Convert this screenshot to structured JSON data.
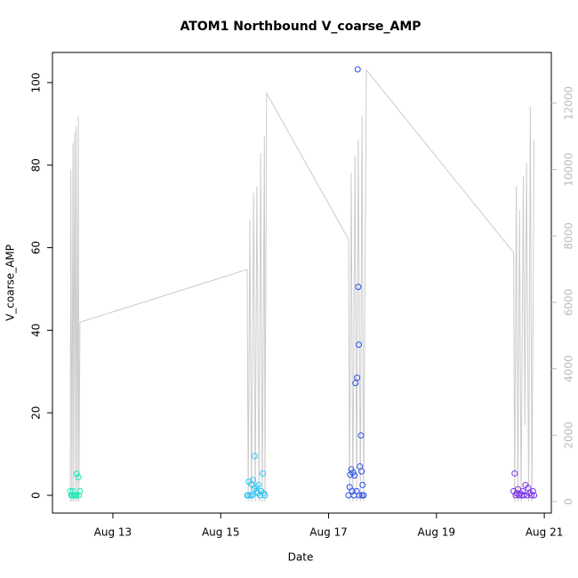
{
  "chart_data": {
    "type": "scatter",
    "title": "ATOM1 Northbound V_coarse_AMP",
    "xlabel": "Date",
    "ylabel": "V_coarse_AMP",
    "xlim": [
      11.88,
      21.13
    ],
    "xticks": [
      {
        "value": 13,
        "label": "Aug 13"
      },
      {
        "value": 15,
        "label": "Aug 15"
      },
      {
        "value": 17,
        "label": "Aug 17"
      },
      {
        "value": 19,
        "label": "Aug 19"
      },
      {
        "value": 21,
        "label": "Aug 21"
      }
    ],
    "ylim": [
      -4.3,
      107.3
    ],
    "yticks": [
      0,
      20,
      40,
      60,
      80,
      100
    ],
    "y2lim": [
      -348,
      13527
    ],
    "y2ticks": [
      0,
      2000,
      4000,
      6000,
      8000,
      10000,
      12000
    ],
    "series": [
      {
        "color": "#1de9b6",
        "x": [
          12.21,
          12.23,
          12.25,
          12.26,
          12.28,
          12.3,
          12.32,
          12.33,
          12.36,
          12.37,
          12.39
        ],
        "values": [
          1,
          0,
          0,
          1,
          0,
          0,
          0,
          5.2,
          4.4,
          0,
          1
        ]
      },
      {
        "color": "#29c4f6",
        "x": [
          15.49,
          15.51,
          15.52,
          15.55,
          15.57,
          15.58,
          15.6,
          15.62,
          15.63,
          15.65,
          15.67,
          15.69,
          15.7,
          15.73,
          15.75,
          15.78,
          15.8,
          15.82
        ],
        "values": [
          0,
          0,
          3.3,
          0,
          2.7,
          0,
          3.7,
          1.5,
          9.5,
          2,
          1,
          0.5,
          2.5,
          0,
          1,
          5.3,
          0.5,
          0
        ]
      },
      {
        "color": "#2a4fe8",
        "x": [
          17.37,
          17.39,
          17.4,
          17.42,
          17.44,
          17.45,
          17.47,
          17.48,
          17.5,
          17.52,
          17.53,
          17.54,
          17.55,
          17.56,
          17.57,
          17.58,
          17.6,
          17.61,
          17.62,
          17.63,
          17.65
        ],
        "values": [
          0,
          2,
          5,
          6.3,
          1,
          5.5,
          0,
          4.8,
          27.2,
          1,
          28.5,
          103.2,
          50.5,
          36.5,
          0,
          7,
          14.5,
          5.8,
          0,
          2.5,
          0
        ]
      },
      {
        "color": "#7b2fe8",
        "x": [
          20.43,
          20.45,
          20.47,
          20.49,
          20.51,
          20.53,
          20.56,
          20.58,
          20.6,
          20.62,
          20.65,
          20.68,
          20.7,
          20.73,
          20.76,
          20.79,
          20.81
        ],
        "values": [
          1,
          5.3,
          0,
          0.5,
          1.5,
          0,
          0.5,
          0,
          1,
          0,
          2.5,
          0,
          1.8,
          0.5,
          0,
          1,
          0
        ]
      },
      {
        "color": "#cccccc",
        "axis": "y2",
        "x": [
          12.21,
          12.22,
          12.24,
          12.26,
          12.27,
          12.29,
          12.31,
          12.32,
          12.34,
          12.36,
          12.37,
          12.39,
          15.49,
          15.51,
          15.54,
          15.57,
          15.61,
          15.64,
          15.67,
          15.71,
          15.74,
          15.77,
          15.81,
          15.82,
          15.85,
          17.37,
          17.39,
          17.42,
          17.45,
          17.49,
          17.52,
          17.55,
          17.59,
          17.62,
          17.65,
          17.7,
          20.43,
          20.45,
          20.48,
          20.51,
          20.54,
          20.57,
          20.61,
          20.64,
          20.67,
          20.71,
          20.74,
          20.77,
          20.81
        ],
        "values": [
          0,
          10000,
          0,
          10800,
          0,
          11100,
          0,
          11300,
          0,
          11600,
          0,
          5400,
          6990,
          0,
          8500,
          0,
          9300,
          0,
          9500,
          0,
          10500,
          0,
          11000,
          0,
          12300,
          7900,
          0,
          9900,
          0,
          10400,
          0,
          10900,
          0,
          11600,
          0,
          13000,
          7500,
          0,
          9500,
          0,
          8800,
          0,
          9800,
          2300,
          10200,
          0,
          11900,
          0,
          10900
        ]
      }
    ]
  }
}
